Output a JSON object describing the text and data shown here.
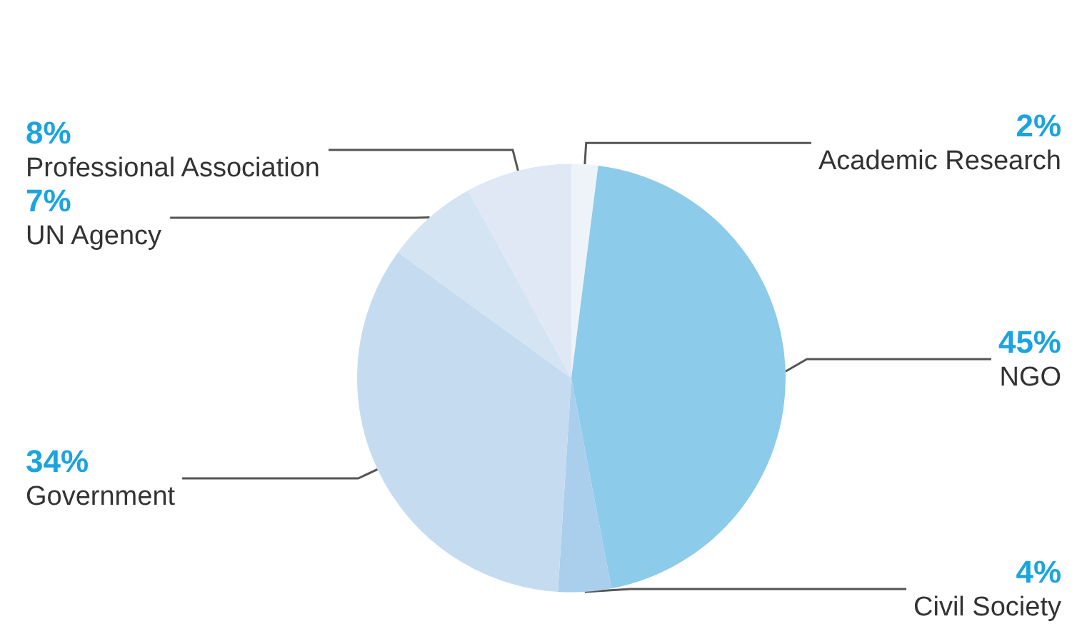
{
  "chart_data": {
    "type": "pie",
    "categories": [
      "Academic Research",
      "NGO",
      "Civil Society",
      "Government",
      "UN Agency",
      "Professional Association"
    ],
    "values": [
      2,
      45,
      4,
      34,
      7,
      8
    ],
    "value_labels": [
      "2%",
      "45%",
      "4%",
      "34%",
      "7%",
      "8%"
    ],
    "colors": [
      "#eef3fa",
      "#8ccbe9",
      "#a9cfec",
      "#c5dcf0",
      "#d5e4f2",
      "#dfe8f4"
    ],
    "legend": false
  }
}
